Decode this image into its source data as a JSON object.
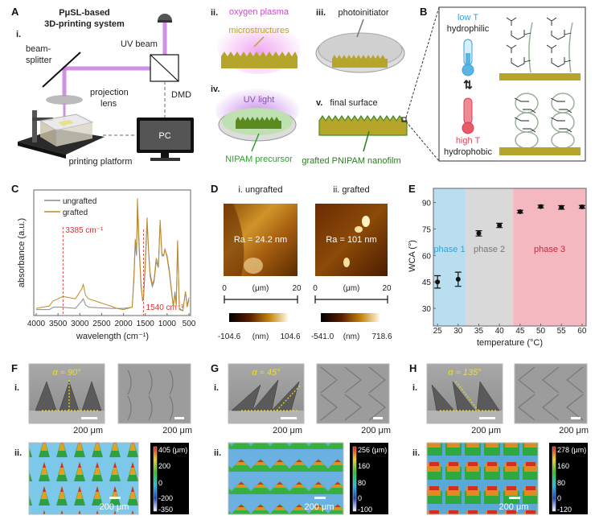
{
  "panel_a": {
    "label": "A",
    "title_line1": "PμSL-based",
    "title_line2": "3D-printing system",
    "sub_i": "i.",
    "uv_beam": "UV beam",
    "beam_splitter_1": "beam-",
    "beam_splitter_2": "splitter",
    "projection_1": "projection",
    "projection_2": "lens",
    "dmd": "DMD",
    "pc": "PC",
    "printing_platform": "printing platform",
    "sub_ii": "ii.",
    "oxygen_plasma": "oxygen plasma",
    "microstructures": "microstructures",
    "sub_iii": "iii.",
    "photoinitiator": "photoinitiator",
    "sub_iv": "iv.",
    "uv_light": "UV light",
    "nipam_precursor": "NIPAM precursor",
    "sub_v": "v.",
    "final_surface": "final surface",
    "grafted_nanofilm": "grafted PNIPAM nanofilm",
    "colors": {
      "uv": "#c77de0",
      "plasma": "#e46be6",
      "substrate": "#b5a52a",
      "film": "#3f8f2b"
    }
  },
  "panel_b": {
    "label": "B",
    "low_t": "low T",
    "hydrophilic": "hydrophilic",
    "high_t": "high T",
    "hydrophobic": "hydrophobic",
    "colors": {
      "cold": "#3aa0d8",
      "hot": "#e0495a"
    }
  },
  "panel_d": {
    "label": "D",
    "ungrafted": {
      "title": "i. ungrafted",
      "ra": "Ra = 24.2 nm",
      "axis_min": "0",
      "axis_unit": "(μm)",
      "axis_max": "20",
      "cb_min": "-104.6",
      "cb_unit": "(nm)",
      "cb_max": "104.6"
    },
    "grafted": {
      "title": "ii. grafted",
      "ra": "Ra = 101 nm",
      "axis_min": "0",
      "axis_unit": "(μm)",
      "axis_max": "20",
      "cb_min": "-541.0",
      "cb_unit": "(nm)",
      "cb_max": "718.6"
    }
  },
  "bottom_panels": [
    {
      "label": "F",
      "sub_i": "i.",
      "sub_ii": "ii.",
      "angle": "α ≈ 90°",
      "scale_1": "200 μm",
      "scale_2": "200 μm",
      "scale_3": "200 μm",
      "cb_ticks": [
        "405 (μm)",
        "200",
        "0",
        "-200",
        "-350"
      ]
    },
    {
      "label": "G",
      "sub_i": "i.",
      "sub_ii": "ii.",
      "angle": "α ≈ 45°",
      "scale_1": "200 μm",
      "scale_2": "200 μm",
      "scale_3": "200 μm",
      "cb_ticks": [
        "256 (μm)",
        "160",
        "80",
        "0",
        "-100"
      ]
    },
    {
      "label": "H",
      "sub_i": "i.",
      "sub_ii": "ii.",
      "angle": "α ≈ 135°",
      "scale_1": "200 μm",
      "scale_2": "200 μm",
      "scale_3": "200 μm",
      "cb_ticks": [
        "278 (μm)",
        "160",
        "80",
        "0",
        "-120"
      ]
    }
  ],
  "chart_data": [
    {
      "panel": "C",
      "type": "line",
      "xlabel": "wavelength (cm⁻¹)",
      "ylabel": "absorbance (a.u.)",
      "xlim": [
        4000,
        500
      ],
      "ylim": [
        0,
        1.05
      ],
      "xticks": [
        4000,
        3500,
        3000,
        2500,
        2000,
        1500,
        1000,
        500
      ],
      "legend": "top-left",
      "annotations": [
        {
          "x": 3385,
          "text": "3385 cm⁻¹"
        },
        {
          "x": 1540,
          "text": "1540 cm⁻¹"
        }
      ],
      "series": [
        {
          "name": "ungrafted",
          "color": "#8a8a8a",
          "points": [
            [
              4000,
              0.05
            ],
            [
              3700,
              0.05
            ],
            [
              3600,
              0.07
            ],
            [
              3400,
              0.07
            ],
            [
              3100,
              0.06
            ],
            [
              2960,
              0.12
            ],
            [
              2920,
              0.14
            ],
            [
              2870,
              0.09
            ],
            [
              2800,
              0.07
            ],
            [
              2300,
              0.06
            ],
            [
              2000,
              0.06
            ],
            [
              1800,
              0.07
            ],
            [
              1760,
              0.3
            ],
            [
              1730,
              0.6
            ],
            [
              1700,
              0.5
            ],
            [
              1680,
              0.88
            ],
            [
              1640,
              0.55
            ],
            [
              1600,
              0.25
            ],
            [
              1560,
              0.12
            ],
            [
              1540,
              0.14
            ],
            [
              1500,
              0.4
            ],
            [
              1460,
              0.78
            ],
            [
              1420,
              0.5
            ],
            [
              1390,
              0.33
            ],
            [
              1340,
              0.24
            ],
            [
              1300,
              0.28
            ],
            [
              1250,
              0.45
            ],
            [
              1200,
              0.4
            ],
            [
              1160,
              0.78
            ],
            [
              1120,
              0.5
            ],
            [
              1080,
              0.5
            ],
            [
              1050,
              0.55
            ],
            [
              1000,
              0.5
            ],
            [
              950,
              0.38
            ],
            [
              900,
              0.22
            ],
            [
              860,
              0.08
            ],
            [
              820,
              0.2
            ],
            [
              790,
              0.1
            ],
            [
              760,
              0.62
            ],
            [
              720,
              0.06
            ],
            [
              640,
              0.04
            ],
            [
              580,
              0.2
            ],
            [
              540,
              0.08
            ],
            [
              500,
              0.15
            ]
          ]
        },
        {
          "name": "grafted",
          "color": "#c08a2a",
          "points": [
            [
              4000,
              0.06
            ],
            [
              3700,
              0.08
            ],
            [
              3620,
              0.12
            ],
            [
              3385,
              0.16
            ],
            [
              3100,
              0.14
            ],
            [
              2960,
              0.22
            ],
            [
              2920,
              0.26
            ],
            [
              2870,
              0.17
            ],
            [
              2800,
              0.14
            ],
            [
              2300,
              0.08
            ],
            [
              2150,
              0.06
            ],
            [
              2000,
              0.05
            ],
            [
              1800,
              0.07
            ],
            [
              1760,
              0.35
            ],
            [
              1730,
              0.64
            ],
            [
              1700,
              0.55
            ],
            [
              1680,
              0.98
            ],
            [
              1640,
              0.6
            ],
            [
              1600,
              0.28
            ],
            [
              1560,
              0.12
            ],
            [
              1540,
              0.16
            ],
            [
              1500,
              0.45
            ],
            [
              1460,
              0.82
            ],
            [
              1420,
              0.52
            ],
            [
              1390,
              0.36
            ],
            [
              1340,
              0.26
            ],
            [
              1300,
              0.3
            ],
            [
              1250,
              0.48
            ],
            [
              1200,
              0.42
            ],
            [
              1160,
              0.8
            ],
            [
              1120,
              0.52
            ],
            [
              1080,
              0.5
            ],
            [
              1050,
              0.56
            ],
            [
              1000,
              0.48
            ],
            [
              950,
              0.36
            ],
            [
              900,
              0.2
            ],
            [
              860,
              0.07
            ],
            [
              820,
              0.18
            ],
            [
              790,
              0.08
            ],
            [
              760,
              0.63
            ],
            [
              720,
              0.05
            ],
            [
              640,
              0.04
            ],
            [
              580,
              0.2
            ],
            [
              540,
              0.07
            ],
            [
              500,
              0.13
            ]
          ]
        }
      ]
    },
    {
      "panel": "E",
      "type": "scatter",
      "xlabel": "temperature (°C)",
      "ylabel": "WCA (°)",
      "xlim": [
        24,
        61
      ],
      "ylim": [
        20,
        98
      ],
      "xticks": [
        25,
        30,
        35,
        40,
        45,
        50,
        55,
        60
      ],
      "yticks": [
        30,
        45,
        60,
        75,
        90
      ],
      "regions": [
        {
          "name": "phase 1",
          "from": 24,
          "to": 31.8,
          "fill": "#b9def0",
          "text_color": "#3a9fd3"
        },
        {
          "name": "phase 2",
          "from": 31.8,
          "to": 43.3,
          "fill": "#d9d9d9",
          "text_color": "#777777"
        },
        {
          "name": "phase 3",
          "from": 43.3,
          "to": 61,
          "fill": "#f4b9c0",
          "text_color": "#d0233a"
        }
      ],
      "x": [
        25,
        30,
        35,
        40,
        45,
        50,
        55,
        60
      ],
      "y": [
        45.0,
        46.5,
        72.5,
        77.0,
        84.8,
        87.7,
        87.2,
        87.5
      ],
      "error": [
        3.5,
        4.0,
        1.5,
        1.2,
        0.8,
        0.8,
        1.0,
        0.8
      ]
    }
  ]
}
